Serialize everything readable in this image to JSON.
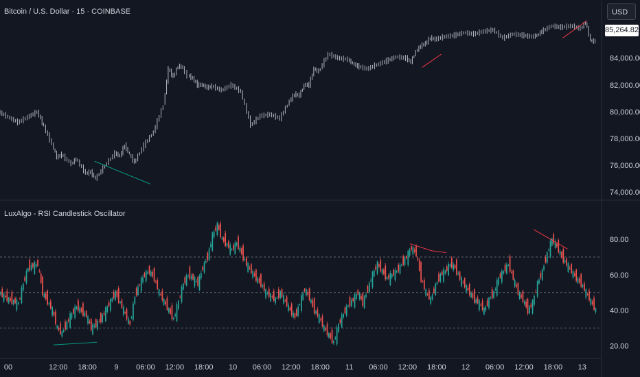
{
  "header": {
    "symbol_title": "Bitcoin / U.S. Dollar · 15 · COINBASE",
    "currency_button": "USD",
    "last_price": "85,264.82"
  },
  "indicator": {
    "title": "LuxAlgo - RSI Candlestick Oscillator"
  },
  "colors": {
    "background": "#131722",
    "up": "#26a69a",
    "down": "#ef5350",
    "price_line": "#b2b5be",
    "bear_div": "#f23645",
    "bull_div": "#089981"
  },
  "chart_data": [
    {
      "type": "line",
      "title": "Bitcoin / U.S. Dollar · 15 · COINBASE",
      "ylim": [
        73500,
        86800
      ],
      "y_ticks": [
        "84,000.00",
        "82,000.00",
        "80,000.00",
        "78,000.00",
        "76,000.00",
        "74,000.00"
      ],
      "y_tick_values": [
        84000,
        82000,
        80000,
        78000,
        76000,
        74000
      ],
      "x_ticks": [
        "00",
        "12:00",
        "18:00",
        "9",
        "06:00",
        "12:00",
        "18:00",
        "10",
        "06:00",
        "12:00",
        "18:00",
        "11",
        "06:00",
        "12:00",
        "18:00",
        "12",
        "06:00",
        "12:00",
        "18:00",
        "13"
      ],
      "x_tick_times": [
        0,
        12,
        18,
        24,
        30,
        36,
        42,
        48,
        54,
        60,
        66,
        72,
        78,
        84,
        90,
        96,
        102,
        108,
        114,
        120
      ],
      "xlim": [
        0,
        124
      ],
      "series": [
        {
          "t": [
            0,
            2,
            4,
            6,
            8,
            9,
            11,
            12,
            13,
            15,
            16,
            18,
            19,
            20,
            22,
            24,
            25,
            26,
            27,
            28,
            30,
            32,
            34,
            35,
            36,
            37,
            38,
            38.5,
            39,
            40,
            41,
            42,
            43,
            44,
            46,
            48,
            50,
            52,
            54,
            56,
            58,
            60,
            61,
            62,
            63,
            64,
            65,
            66,
            68,
            70,
            72,
            73,
            74,
            76,
            78,
            80,
            82,
            84,
            85,
            86,
            87,
            88,
            89,
            90,
            92,
            94,
            96,
            98,
            100,
            102,
            104,
            106,
            108,
            110,
            111,
            112,
            114,
            116,
            118,
            120,
            121,
            122,
            123
          ],
          "values": [
            80000,
            79600,
            79200,
            79600,
            80000,
            79200,
            77600,
            76600,
            76800,
            76100,
            76500,
            75400,
            75500,
            75000,
            76000,
            76900,
            76700,
            77500,
            76800,
            76200,
            77500,
            78500,
            80500,
            83200,
            82600,
            83400,
            83300,
            82900,
            82700,
            82500,
            82000,
            82000,
            81800,
            81900,
            81600,
            82000,
            81500,
            79000,
            79700,
            79800,
            79500,
            80800,
            81300,
            81200,
            82000,
            82000,
            83200,
            83000,
            84300,
            84000,
            83900,
            83600,
            83400,
            83200,
            83500,
            83800,
            84100,
            84000,
            83700,
            84500,
            84900,
            85100,
            85500,
            85400,
            85600,
            85700,
            85900,
            85800,
            86000,
            86100,
            85500,
            85800,
            85700,
            85600,
            85700,
            86000,
            86400,
            86300,
            86400,
            86200,
            86700,
            85300,
            85260
          ]
        }
      ],
      "divergences": [
        {
          "t": [
            19.5,
            31
          ],
          "values": [
            76300,
            74600
          ],
          "kind": "bullish"
        },
        {
          "t": [
            87,
            91
          ],
          "values": [
            83300,
            84300
          ],
          "kind": "bearish"
        },
        {
          "t": [
            116,
            121
          ],
          "values": [
            85500,
            86800
          ],
          "kind": "bearish"
        }
      ]
    },
    {
      "type": "line",
      "title": "LuxAlgo - RSI Candlestick Oscillator",
      "ylim": [
        14,
        92
      ],
      "y_ticks": [
        "80.00",
        "60.00",
        "40.00",
        "20.00"
      ],
      "y_tick_values": [
        80,
        60,
        40,
        20
      ],
      "levels": [
        70,
        50,
        30
      ],
      "xlim": [
        0,
        124
      ],
      "series": [
        {
          "t": [
            0,
            2,
            4,
            5,
            6,
            8,
            9,
            10,
            11,
            12,
            13,
            14,
            15,
            16,
            18,
            19,
            20,
            21,
            22,
            23,
            24,
            25,
            26,
            27,
            28,
            29,
            30,
            31,
            32,
            33,
            34,
            35,
            36,
            37,
            38,
            39,
            40,
            41,
            42,
            43,
            44,
            45,
            46,
            47,
            48,
            49,
            50,
            51,
            52,
            53,
            54,
            55,
            56,
            57,
            58,
            59,
            60,
            61,
            62,
            63,
            64,
            65,
            66,
            67,
            68,
            69,
            70,
            71,
            72,
            73,
            74,
            75,
            76,
            77,
            78,
            79,
            80,
            81,
            82,
            83,
            84,
            85,
            86,
            87,
            88,
            89,
            90,
            91,
            92,
            93,
            94,
            95,
            96,
            97,
            98,
            99,
            100,
            101,
            102,
            103,
            104,
            105,
            106,
            107,
            108,
            109,
            110,
            111,
            112,
            113,
            114,
            115,
            116,
            117,
            118,
            119,
            120,
            121,
            122,
            123
          ],
          "values": [
            50,
            46,
            44,
            55,
            64,
            66,
            50,
            45,
            40,
            30,
            27,
            33,
            38,
            42,
            37,
            30,
            32,
            35,
            40,
            45,
            50,
            44,
            38,
            32,
            48,
            55,
            60,
            62,
            58,
            50,
            45,
            40,
            35,
            45,
            55,
            60,
            58,
            55,
            64,
            70,
            82,
            88,
            80,
            77,
            74,
            78,
            72,
            66,
            62,
            58,
            55,
            50,
            48,
            46,
            50,
            45,
            40,
            36,
            44,
            52,
            47,
            40,
            36,
            30,
            26,
            22,
            32,
            38,
            43,
            46,
            50,
            44,
            52,
            60,
            66,
            62,
            58,
            60,
            62,
            66,
            70,
            75,
            72,
            58,
            50,
            46,
            54,
            60,
            62,
            66,
            64,
            58,
            54,
            50,
            46,
            44,
            40,
            46,
            50,
            58,
            62,
            66,
            58,
            50,
            46,
            40,
            44,
            55,
            62,
            72,
            80,
            76,
            70,
            66,
            62,
            58,
            55,
            50,
            45,
            40
          ]
        }
      ],
      "divergences": [
        {
          "t": [
            11,
            20
          ],
          "values": [
            20.5,
            22
          ],
          "kind": "bullish"
        },
        {
          "t": [
            84.5,
            89,
            92
          ],
          "values": [
            77.5,
            73.5,
            72.5
          ],
          "kind": "bearish"
        },
        {
          "t": [
            110,
            117
          ],
          "values": [
            85.5,
            74.5
          ],
          "kind": "bearish"
        }
      ]
    }
  ]
}
